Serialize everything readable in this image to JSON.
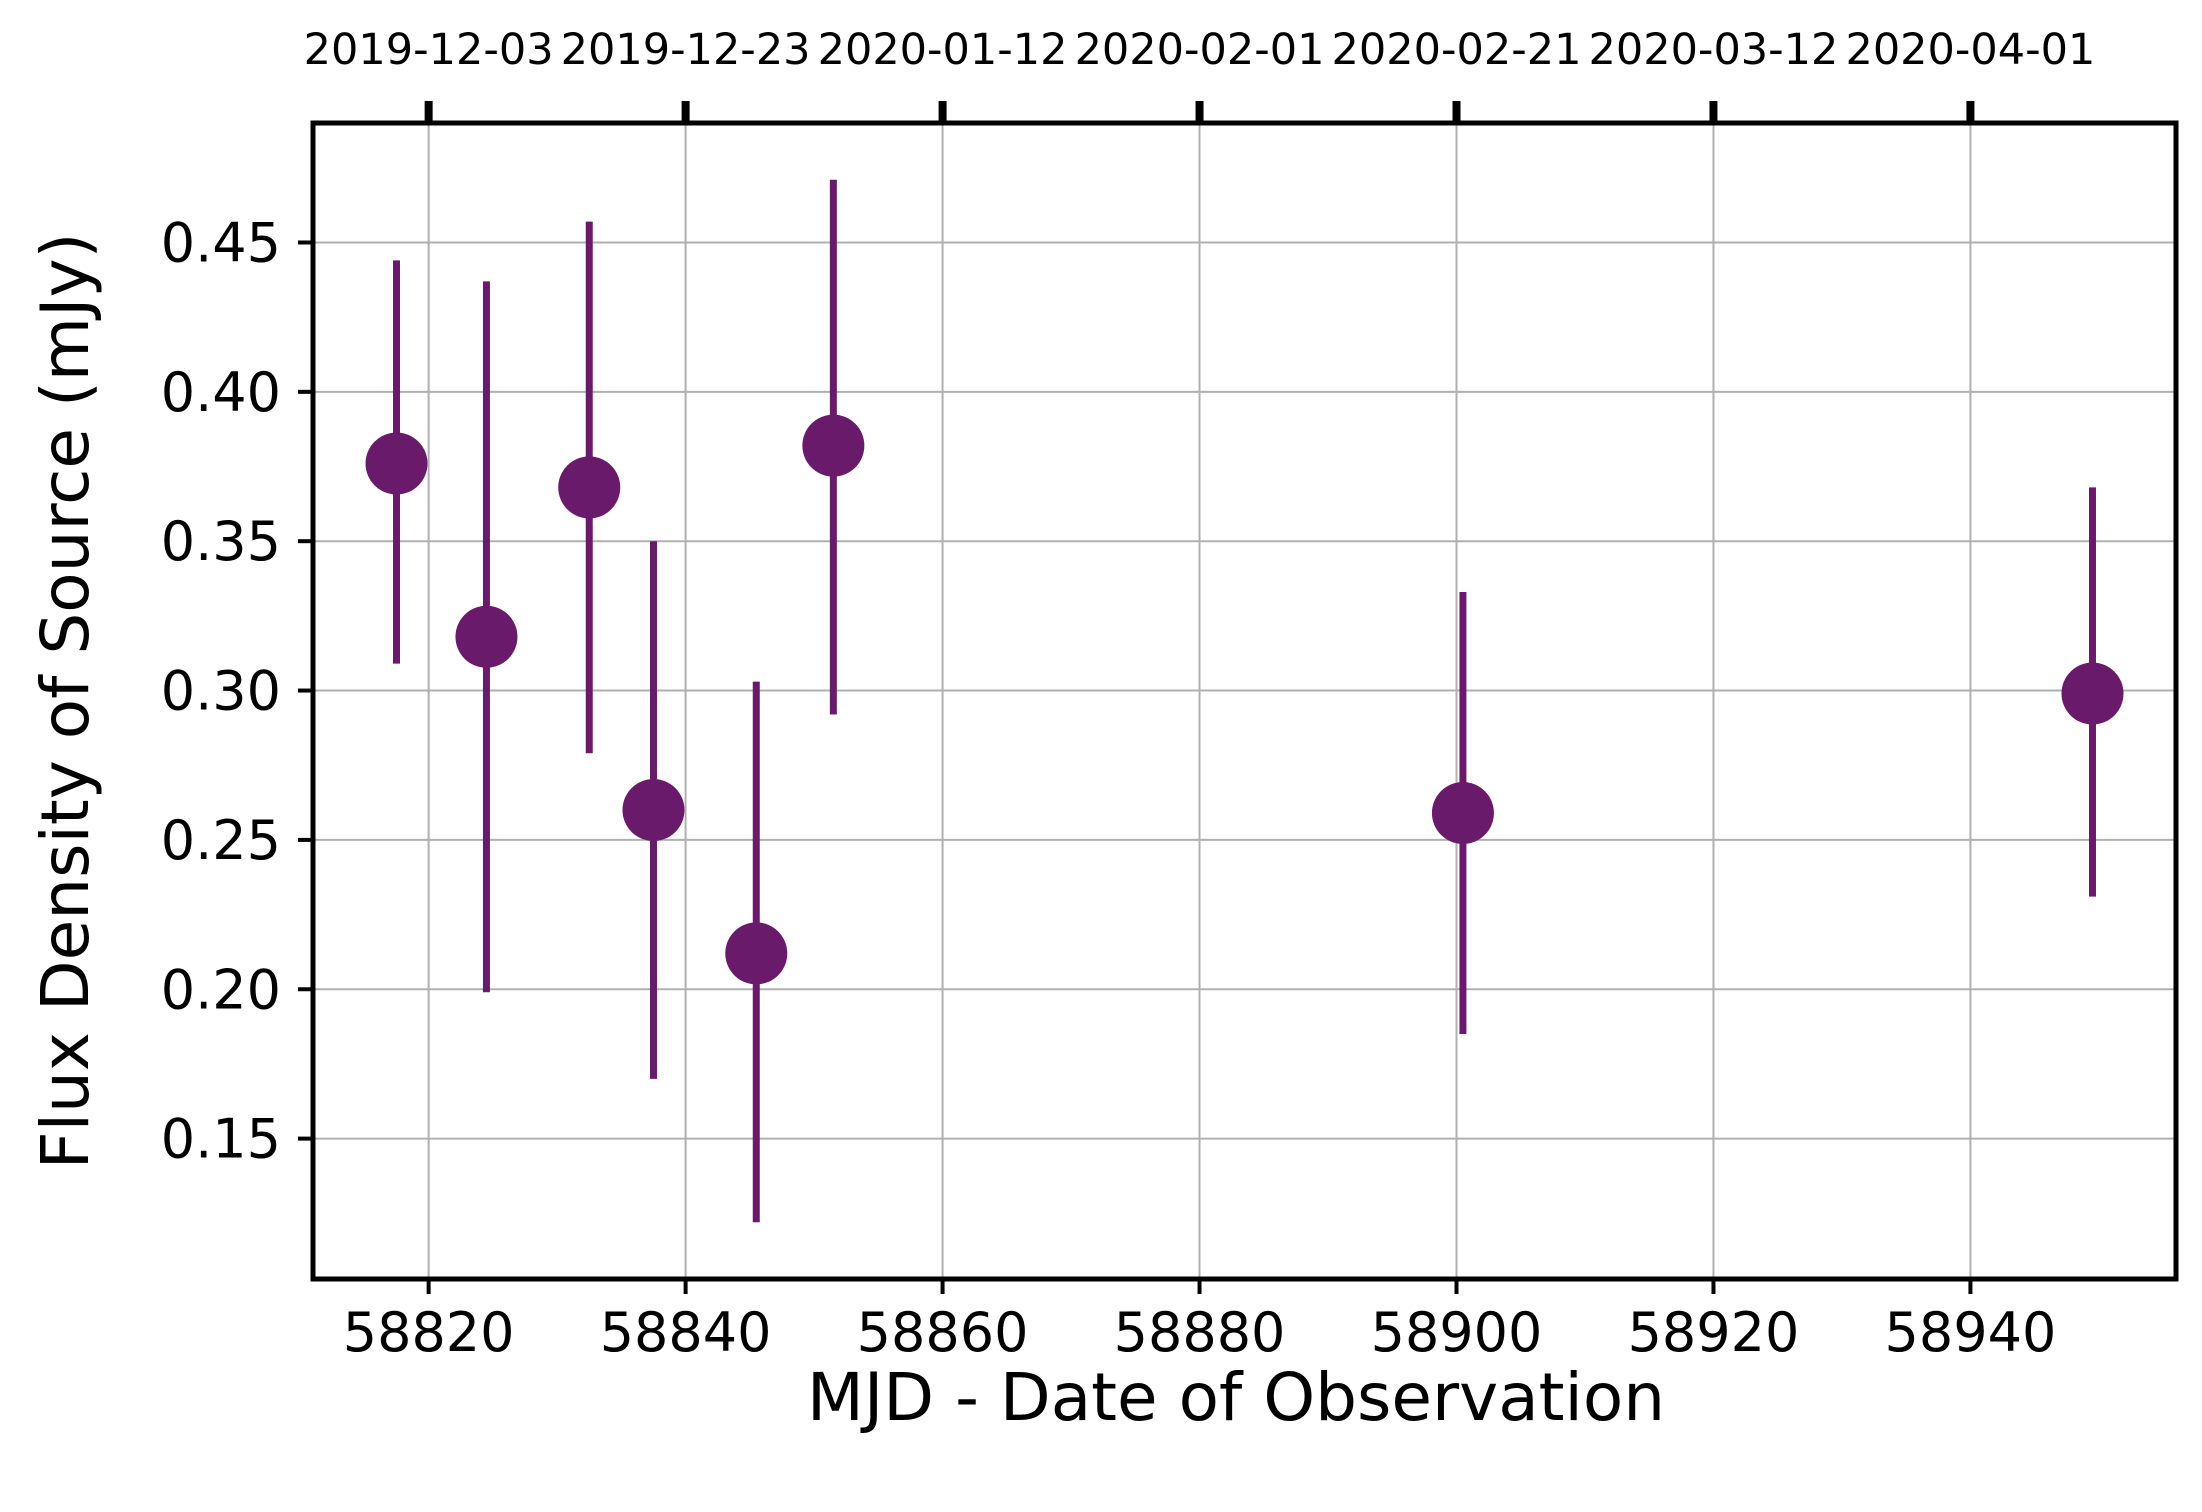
{
  "chart_data": {
    "type": "scatter",
    "title": "",
    "xlabel": "MJD - Date of Observation",
    "ylabel": "Flux Density of Source (mJy)",
    "xlim": [
      58811,
      58956
    ],
    "ylim": [
      0.103,
      0.49
    ],
    "grid": true,
    "marker_color": "#6a1a6b",
    "x_ticks": [
      58820,
      58840,
      58860,
      58880,
      58900,
      58920,
      58940
    ],
    "y_ticks": [
      0.15,
      0.2,
      0.25,
      0.3,
      0.35,
      0.4,
      0.45
    ],
    "y_tick_labels": [
      "0.15",
      "0.20",
      "0.25",
      "0.30",
      "0.35",
      "0.40",
      "0.45"
    ],
    "top_axis": {
      "ticks": [
        58820,
        58840,
        58860,
        58880,
        58900,
        58920,
        58940
      ],
      "labels": [
        "2019-12-03",
        "2019-12-23",
        "2020-01-12",
        "2020-02-01",
        "2020-02-21",
        "2020-03-12",
        "2020-04-01"
      ]
    },
    "points": [
      {
        "x": 58817.5,
        "y": 0.376,
        "yerr_low": 0.309,
        "yerr_high": 0.444
      },
      {
        "x": 58824.5,
        "y": 0.318,
        "yerr_low": 0.199,
        "yerr_high": 0.437
      },
      {
        "x": 58832.5,
        "y": 0.368,
        "yerr_low": 0.279,
        "yerr_high": 0.457
      },
      {
        "x": 58837.5,
        "y": 0.26,
        "yerr_low": 0.17,
        "yerr_high": 0.35
      },
      {
        "x": 58845.5,
        "y": 0.212,
        "yerr_low": 0.122,
        "yerr_high": 0.303
      },
      {
        "x": 58851.5,
        "y": 0.382,
        "yerr_low": 0.292,
        "yerr_high": 0.471
      },
      {
        "x": 58900.5,
        "y": 0.259,
        "yerr_low": 0.185,
        "yerr_high": 0.333
      },
      {
        "x": 58949.5,
        "y": 0.299,
        "yerr_low": 0.231,
        "yerr_high": 0.368
      }
    ]
  }
}
